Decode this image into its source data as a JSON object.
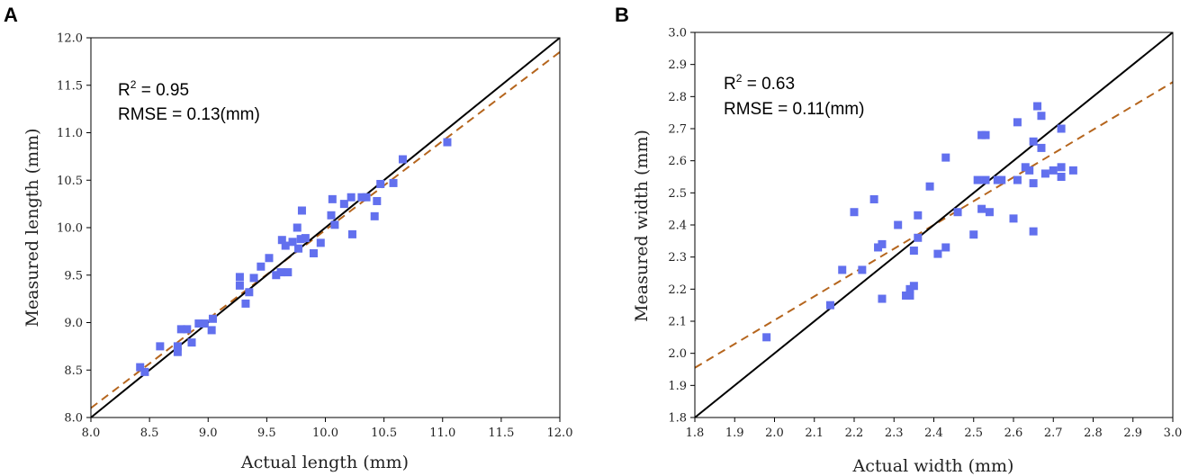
{
  "chart_data": [
    {
      "type": "scatter",
      "panel_label": "A",
      "xlabel": "Actual length (mm)",
      "ylabel": "Measured length (mm)",
      "xlim": [
        8.0,
        12.0
      ],
      "ylim": [
        8.0,
        12.0
      ],
      "xticks": [
        "8.0",
        "8.5",
        "9.0",
        "9.5",
        "10.0",
        "10.5",
        "11.0",
        "11.5",
        "12.0"
      ],
      "yticks": [
        "8.0",
        "8.5",
        "9.0",
        "9.5",
        "10.0",
        "10.5",
        "11.0",
        "11.5",
        "12.0"
      ],
      "annotation": {
        "r2_label": "R",
        "r2_sup": "2",
        "r2_value": " = 0.95",
        "rmse": "RMSE = 0.13(mm)"
      },
      "identity_line": [
        [
          8.0,
          8.0
        ],
        [
          12.0,
          12.0
        ]
      ],
      "fit_line": [
        [
          8.0,
          8.1
        ],
        [
          12.0,
          11.85
        ]
      ],
      "colors": {
        "points": "#6270ee",
        "identity": "#000000",
        "fit": "#b5651d"
      },
      "points": [
        [
          8.42,
          8.53
        ],
        [
          8.46,
          8.48
        ],
        [
          8.59,
          8.75
        ],
        [
          8.74,
          8.75
        ],
        [
          8.74,
          8.69
        ],
        [
          8.77,
          8.93
        ],
        [
          8.82,
          8.93
        ],
        [
          8.86,
          8.79
        ],
        [
          8.92,
          8.99
        ],
        [
          8.97,
          8.99
        ],
        [
          9.03,
          8.92
        ],
        [
          9.04,
          9.04
        ],
        [
          9.27,
          9.48
        ],
        [
          9.27,
          9.39
        ],
        [
          9.32,
          9.2
        ],
        [
          9.35,
          9.32
        ],
        [
          9.39,
          9.47
        ],
        [
          9.45,
          9.59
        ],
        [
          9.52,
          9.68
        ],
        [
          9.58,
          9.5
        ],
        [
          9.62,
          9.53
        ],
        [
          9.63,
          9.87
        ],
        [
          9.66,
          9.81
        ],
        [
          9.68,
          9.53
        ],
        [
          9.72,
          9.85
        ],
        [
          9.76,
          10.0
        ],
        [
          9.77,
          9.78
        ],
        [
          9.79,
          9.88
        ],
        [
          9.8,
          10.18
        ],
        [
          9.83,
          9.89
        ],
        [
          9.9,
          9.73
        ],
        [
          9.96,
          9.84
        ],
        [
          10.05,
          10.13
        ],
        [
          10.06,
          10.3
        ],
        [
          10.08,
          10.03
        ],
        [
          10.16,
          10.25
        ],
        [
          10.22,
          10.32
        ],
        [
          10.23,
          9.93
        ],
        [
          10.31,
          10.32
        ],
        [
          10.35,
          10.32
        ],
        [
          10.42,
          10.12
        ],
        [
          10.44,
          10.28
        ],
        [
          10.47,
          10.46
        ],
        [
          10.58,
          10.47
        ],
        [
          10.66,
          10.72
        ],
        [
          11.04,
          10.9
        ]
      ]
    },
    {
      "type": "scatter",
      "panel_label": "B",
      "xlabel": "Actual width (mm)",
      "ylabel": "Measured width (mm)",
      "xlim": [
        1.8,
        3.0
      ],
      "ylim": [
        1.8,
        3.0
      ],
      "xticks": [
        "1.8",
        "1.9",
        "2.0",
        "2.1",
        "2.2",
        "2.3",
        "2.4",
        "2.5",
        "2.6",
        "2.7",
        "2.8",
        "2.9",
        "3.0"
      ],
      "yticks": [
        "1.8",
        "1.9",
        "2.0",
        "2.1",
        "2.2",
        "2.3",
        "2.4",
        "2.5",
        "2.6",
        "2.7",
        "2.8",
        "2.9",
        "3.0"
      ],
      "annotation": {
        "r2_label": "R",
        "r2_sup": "2",
        "r2_value": " = 0.63",
        "rmse": "RMSE = 0.11(mm)"
      },
      "identity_line": [
        [
          1.8,
          1.8
        ],
        [
          3.0,
          3.0
        ]
      ],
      "fit_line": [
        [
          1.8,
          1.955
        ],
        [
          3.0,
          2.845
        ]
      ],
      "colors": {
        "points": "#6270ee",
        "identity": "#000000",
        "fit": "#b5651d"
      },
      "points": [
        [
          1.98,
          2.05
        ],
        [
          2.14,
          2.15
        ],
        [
          2.17,
          2.26
        ],
        [
          2.2,
          2.44
        ],
        [
          2.22,
          2.26
        ],
        [
          2.25,
          2.48
        ],
        [
          2.26,
          2.33
        ],
        [
          2.27,
          2.34
        ],
        [
          2.27,
          2.17
        ],
        [
          2.31,
          2.4
        ],
        [
          2.33,
          2.18
        ],
        [
          2.34,
          2.2
        ],
        [
          2.34,
          2.18
        ],
        [
          2.35,
          2.32
        ],
        [
          2.35,
          2.21
        ],
        [
          2.36,
          2.43
        ],
        [
          2.36,
          2.36
        ],
        [
          2.41,
          2.31
        ],
        [
          2.39,
          2.52
        ],
        [
          2.43,
          2.61
        ],
        [
          2.43,
          2.33
        ],
        [
          2.46,
          2.44
        ],
        [
          2.5,
          2.37
        ],
        [
          2.51,
          2.54
        ],
        [
          2.52,
          2.68
        ],
        [
          2.52,
          2.45
        ],
        [
          2.53,
          2.68
        ],
        [
          2.53,
          2.54
        ],
        [
          2.54,
          2.44
        ],
        [
          2.56,
          2.54
        ],
        [
          2.57,
          2.54
        ],
        [
          2.6,
          2.42
        ],
        [
          2.61,
          2.72
        ],
        [
          2.61,
          2.54
        ],
        [
          2.63,
          2.58
        ],
        [
          2.64,
          2.57
        ],
        [
          2.65,
          2.66
        ],
        [
          2.65,
          2.53
        ],
        [
          2.65,
          2.38
        ],
        [
          2.66,
          2.77
        ],
        [
          2.67,
          2.74
        ],
        [
          2.67,
          2.64
        ],
        [
          2.68,
          2.56
        ],
        [
          2.7,
          2.57
        ],
        [
          2.72,
          2.7
        ],
        [
          2.72,
          2.58
        ],
        [
          2.72,
          2.55
        ],
        [
          2.75,
          2.57
        ]
      ]
    }
  ]
}
